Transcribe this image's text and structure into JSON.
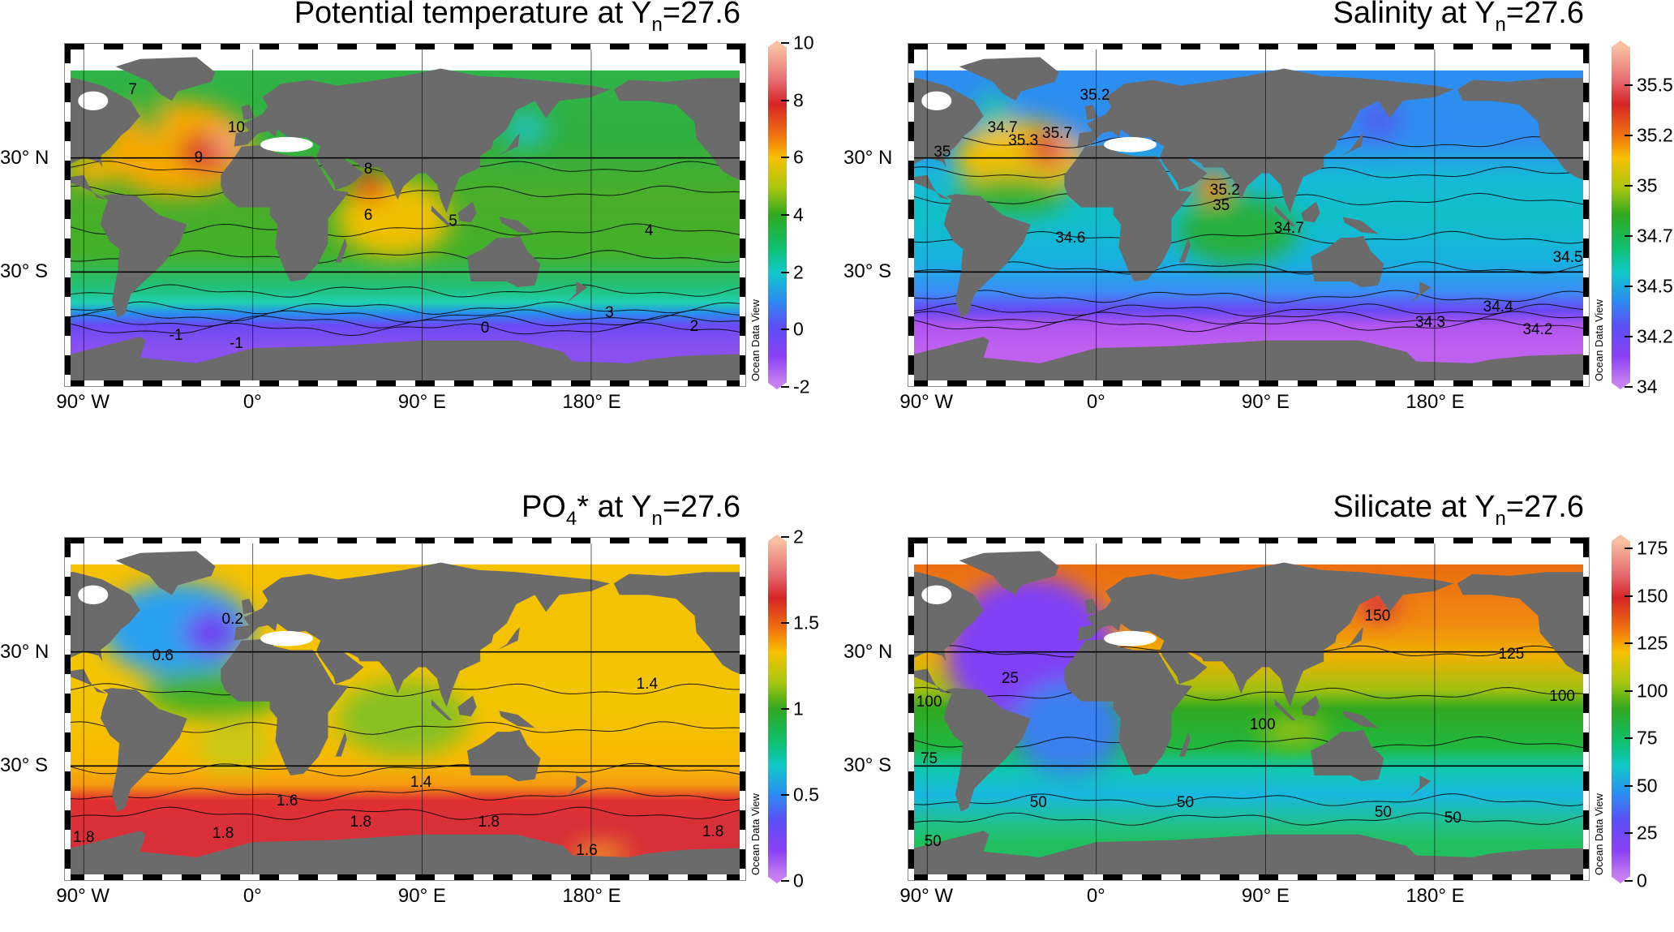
{
  "figure": {
    "lat_labels": [
      "30° N",
      "30° S"
    ],
    "lon_labels": [
      "90° W",
      "0°",
      "90° E",
      "180° E"
    ],
    "watermark": "Ocean Data View",
    "projection_extent": {
      "lon": [
        -100,
        262
      ],
      "lat": [
        -90,
        90
      ]
    }
  },
  "panels": [
    {
      "title": [
        {
          "t": "Potential temperature at Y"
        },
        {
          "t": "n",
          "sub": true
        },
        {
          "t": "=27.6"
        }
      ],
      "colorbar": {
        "ticks": [
          "10",
          "8",
          "6",
          "4",
          "2",
          "0",
          "-2"
        ],
        "range": [
          -2,
          10
        ]
      },
      "contour_labels": [
        "10",
        "9",
        "8",
        "6",
        "4",
        "3",
        "2",
        "0",
        "-1",
        "-1",
        "7",
        "5"
      ]
    },
    {
      "title": [
        {
          "t": "Salinity at Y"
        },
        {
          "t": "n",
          "sub": true
        },
        {
          "t": "=27.6"
        }
      ],
      "colorbar": {
        "ticks": [
          "35.5",
          "35.25",
          "35",
          "34.75",
          "34.5",
          "34.25",
          "34"
        ],
        "range": [
          34,
          35.71
        ]
      },
      "contour_labels": [
        "35.2",
        "34.7",
        "35.3",
        "35.7",
        "35",
        "35.2",
        "35",
        "34.6",
        "34.5",
        "34.4",
        "34.3",
        "34.2",
        "34.7"
      ]
    },
    {
      "title": [
        {
          "t": "PO"
        },
        {
          "t": "4",
          "sub": true
        },
        {
          "t": "* at Y"
        },
        {
          "t": "n",
          "sub": true
        },
        {
          "t": "=27.6"
        }
      ],
      "colorbar": {
        "ticks": [
          "2",
          "1.5",
          "1",
          "0.5",
          "0"
        ],
        "range": [
          0,
          2
        ]
      },
      "contour_labels": [
        "0.6",
        "0.2",
        "1.4",
        "1.4",
        "1.6",
        "1.8",
        "1.8",
        "1.8",
        "1.8",
        "1.8",
        "1.6"
      ]
    },
    {
      "title": [
        {
          "t": "Silicate at Y"
        },
        {
          "t": "n",
          "sub": true
        },
        {
          "t": "=27.6"
        }
      ],
      "colorbar": {
        "ticks": [
          "175",
          "150",
          "125",
          "100",
          "75",
          "50",
          "25",
          "0"
        ],
        "range": [
          0,
          181
        ]
      },
      "contour_labels": [
        "150",
        "125",
        "100",
        "100",
        "100",
        "25",
        "75",
        "50",
        "50",
        "50",
        "50",
        "50"
      ]
    }
  ]
}
